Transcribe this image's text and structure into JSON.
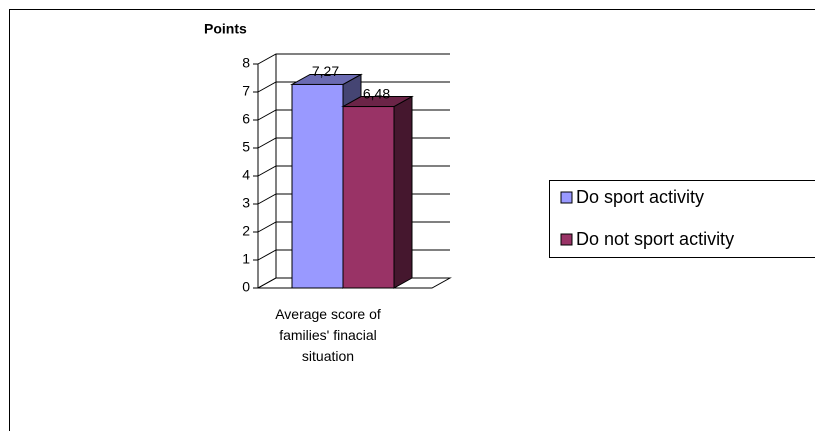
{
  "chart_data": {
    "type": "bar3d",
    "y_axis_label": "Points",
    "categories": [
      "Average score of families' finacial situation"
    ],
    "series": [
      {
        "name": "Do sport activity",
        "color": "#9999ff",
        "values": [
          7.27
        ],
        "value_labels": [
          "7,27"
        ]
      },
      {
        "name": "Do not sport activity",
        "color": "#993366",
        "values": [
          6.48
        ],
        "value_labels": [
          "6,48"
        ]
      }
    ],
    "ylim": [
      0,
      8
    ],
    "yticks": [
      0,
      1,
      2,
      3,
      4,
      5,
      6,
      7,
      8
    ],
    "grid": true,
    "legend": "right"
  }
}
